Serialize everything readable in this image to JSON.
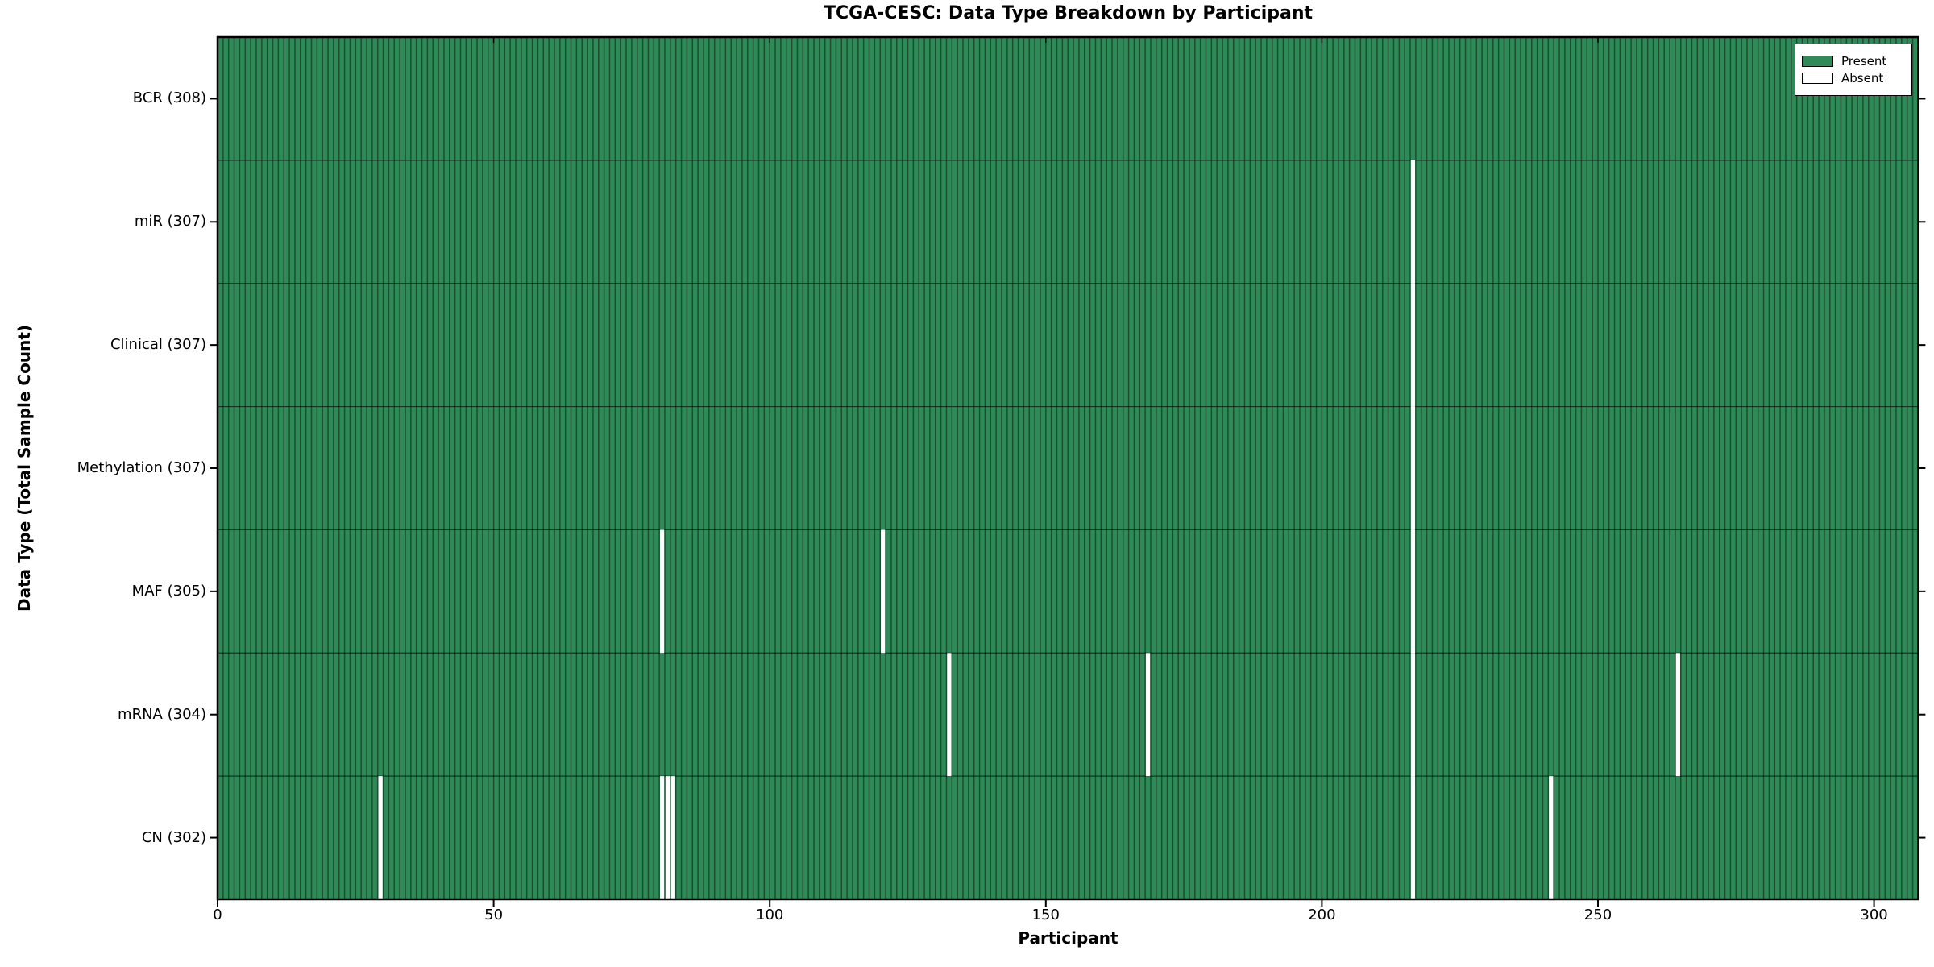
{
  "chart_data": {
    "type": "heatmap",
    "title": "TCGA-CESC: Data Type Breakdown by Participant",
    "xlabel": "Participant",
    "ylabel": "Data Type (Total Sample Count)",
    "n_participants": 308,
    "x_range": [
      0,
      308
    ],
    "x_ticks": [
      0,
      50,
      100,
      150,
      200,
      250,
      300
    ],
    "grid": false,
    "legend_position": "upper right",
    "legend": [
      {
        "label": "Present",
        "color": "#2e8b57"
      },
      {
        "label": "Absent",
        "color": "#ffffff"
      }
    ],
    "colors": {
      "present": "#2e8b57",
      "absent": "#ffffff",
      "bar_edge": "#1b4d30",
      "row_separator": "rgba(0,0,0,0.6)",
      "frame": "#000000"
    },
    "rows": [
      {
        "label": "BCR (308)",
        "data_type": "BCR",
        "total": 308,
        "absent_participants": []
      },
      {
        "label": "miR (307)",
        "data_type": "miR",
        "total": 307,
        "absent_participants": [
          216
        ]
      },
      {
        "label": "Clinical (307)",
        "data_type": "Clinical",
        "total": 307,
        "absent_participants": [
          216
        ]
      },
      {
        "label": "Methylation (307)",
        "data_type": "Methylation",
        "total": 307,
        "absent_participants": [
          216
        ]
      },
      {
        "label": "MAF (305)",
        "data_type": "MAF",
        "total": 305,
        "absent_participants": [
          80,
          120,
          216
        ]
      },
      {
        "label": "mRNA (304)",
        "data_type": "mRNA",
        "total": 304,
        "absent_participants": [
          132,
          168,
          216,
          264
        ]
      },
      {
        "label": "CN (302)",
        "data_type": "CN",
        "total": 302,
        "absent_participants": [
          29,
          80,
          81,
          82,
          216,
          241
        ]
      }
    ]
  }
}
